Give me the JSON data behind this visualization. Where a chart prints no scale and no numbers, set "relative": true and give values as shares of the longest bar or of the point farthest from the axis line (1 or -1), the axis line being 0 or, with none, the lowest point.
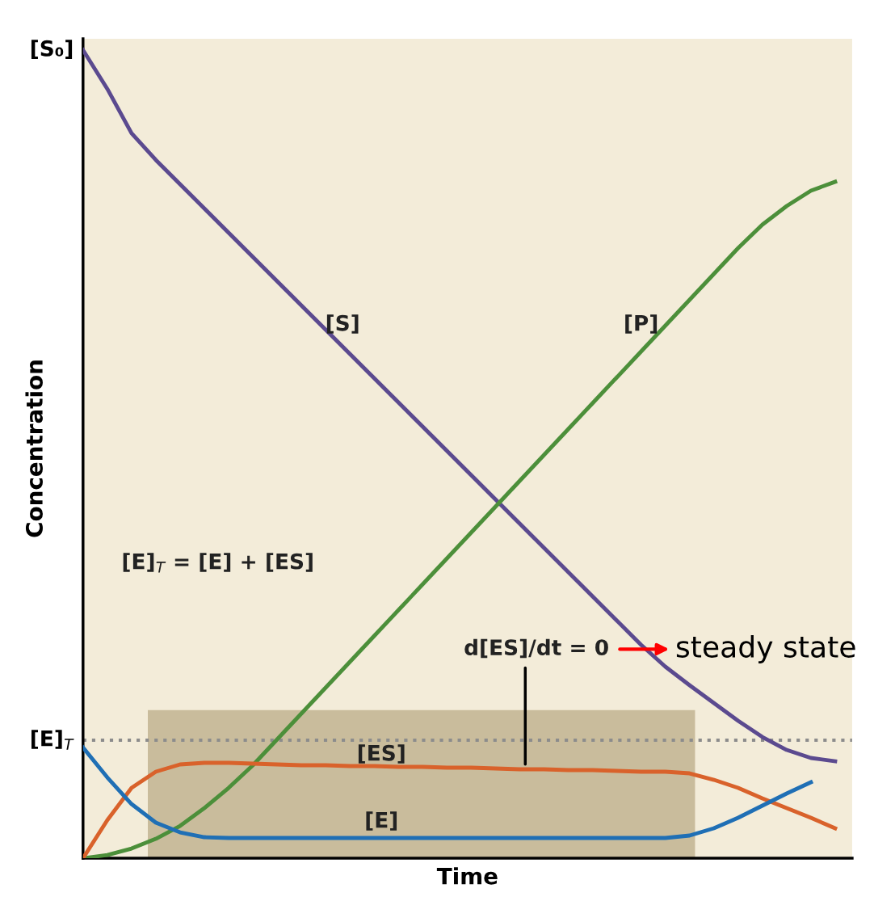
{
  "chart_data": {
    "type": "line",
    "relative": true,
    "xlabel": "Time",
    "ylabel": "Concentration",
    "legend": false,
    "marker": "none",
    "line_style": "solid",
    "categories": [
      null,
      null,
      null,
      null,
      null,
      null,
      null,
      null,
      null,
      null,
      null,
      null,
      null,
      null,
      null,
      null,
      null,
      null,
      null,
      null,
      null,
      null,
      null,
      null,
      null,
      null,
      null,
      null,
      null,
      null,
      null,
      null
    ],
    "series": [
      {
        "name": "[S]",
        "color": "#5b4a8f",
        "values": [
          1.0,
          0.952,
          0.897,
          0.864,
          0.834,
          0.804,
          0.774,
          0.744,
          0.714,
          0.684,
          0.654,
          0.624,
          0.594,
          0.564,
          0.534,
          0.504,
          0.474,
          0.444,
          0.414,
          0.384,
          0.354,
          0.324,
          0.294,
          0.264,
          0.237,
          0.214,
          0.192,
          0.17,
          0.15,
          0.134,
          0.124,
          0.12
        ]
      },
      {
        "name": "[P]",
        "color": "#4c8f3a",
        "values": [
          0,
          0.004,
          0.012,
          0.024,
          0.04,
          0.062,
          0.087,
          0.115,
          0.147,
          0.179,
          0.211,
          0.243,
          0.275,
          0.307,
          0.339,
          0.371,
          0.403,
          0.435,
          0.467,
          0.499,
          0.531,
          0.563,
          0.595,
          0.627,
          0.659,
          0.691,
          0.723,
          0.755,
          0.784,
          0.807,
          0.826,
          0.837
        ]
      },
      {
        "name": "[ES]",
        "color": "#d9622b",
        "values": [
          0,
          0.047,
          0.087,
          0.107,
          0.116,
          0.118,
          0.118,
          0.117,
          0.116,
          0.115,
          0.115,
          0.114,
          0.114,
          0.113,
          0.113,
          0.112,
          0.112,
          0.111,
          0.11,
          0.11,
          0.109,
          0.109,
          0.108,
          0.107,
          0.107,
          0.105,
          0.097,
          0.087,
          0.074,
          0.062,
          0.05,
          0.037
        ]
      },
      {
        "name": "[E]",
        "color": "#1f6fb5",
        "values": [
          0.137,
          0.1,
          0.067,
          0.044,
          0.032,
          0.026,
          0.025,
          0.025,
          0.025,
          0.025,
          0.025,
          0.025,
          0.025,
          0.025,
          0.025,
          0.025,
          0.025,
          0.025,
          0.025,
          0.025,
          0.025,
          0.025,
          0.025,
          0.025,
          0.025,
          0.028,
          0.037,
          0.05,
          0.065,
          0.08,
          0.094,
          null
        ]
      }
    ],
    "ref_lines": [
      {
        "axis": "y",
        "value": 0.146,
        "label": "[E]$_{T}$",
        "color": "#8c8c8c",
        "line_style": "dotted"
      }
    ],
    "annotations": [
      "[S₀]",
      "[E]$_{T}$ = [E] + [ES]",
      "d[ES]/dt = 0",
      "steady state"
    ]
  }
}
